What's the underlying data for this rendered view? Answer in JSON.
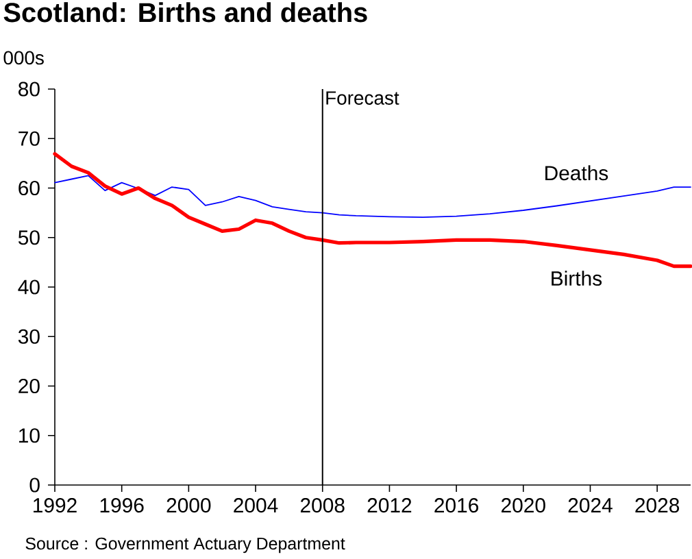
{
  "chart_data": {
    "type": "line",
    "title": "Scotland: Births and deaths",
    "ylabel": "000s",
    "annotations": [
      "Source : Government Actuary Department"
    ],
    "x": [
      1992,
      1993,
      1994,
      1995,
      1996,
      1997,
      1998,
      1999,
      2000,
      2001,
      2002,
      2003,
      2004,
      2005,
      2006,
      2007,
      2008,
      2009,
      2010,
      2012,
      2014,
      2016,
      2018,
      2020,
      2022,
      2024,
      2026,
      2028,
      2029,
      2030
    ],
    "series": [
      {
        "name": "Deaths",
        "color": "#0000ff",
        "values": [
          61.1,
          61.8,
          62.5,
          59.5,
          61.1,
          59.9,
          58.5,
          60.2,
          59.7,
          56.5,
          57.2,
          58.3,
          57.5,
          56.2,
          55.7,
          55.2,
          55.0,
          54.6,
          54.4,
          54.2,
          54.1,
          54.3,
          54.8,
          55.5,
          56.4,
          57.4,
          58.4,
          59.4,
          60.2,
          60.2
        ]
      },
      {
        "name": "Births",
        "color": "#ff0000",
        "values": [
          66.9,
          64.4,
          63.1,
          60.4,
          58.8,
          60.0,
          57.9,
          56.5,
          54.1,
          52.7,
          51.3,
          51.7,
          53.5,
          52.9,
          51.3,
          50.0,
          49.5,
          48.9,
          49.0,
          49.0,
          49.2,
          49.5,
          49.5,
          49.2,
          48.4,
          47.5,
          46.6,
          45.4,
          44.2,
          44.2
        ]
      }
    ],
    "xlim": [
      1992,
      2030
    ],
    "ylim": [
      0,
      80
    ],
    "xticks": [
      1992,
      1996,
      2000,
      2004,
      2008,
      2012,
      2016,
      2020,
      2024,
      2028
    ],
    "yticks": [
      0,
      10,
      20,
      30,
      40,
      50,
      60,
      70,
      80
    ],
    "ref_lines": [
      {
        "axis": "x",
        "value": 2008,
        "label": "Forecast"
      }
    ]
  }
}
